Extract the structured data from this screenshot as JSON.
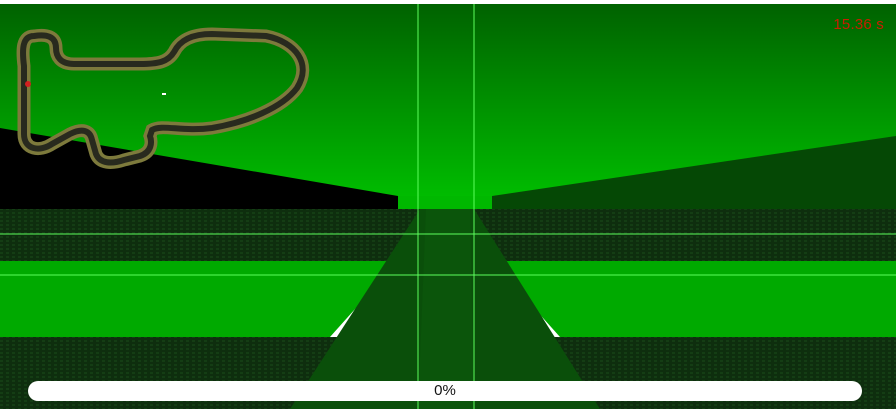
{
  "hud": {
    "timer": "15.36 s",
    "timer_color": "#c81e00"
  },
  "progress": {
    "label": "0%",
    "value": 0
  },
  "scene": {
    "sky_colors": [
      "#006400",
      "#00c800"
    ],
    "ground_color": "#0f2a0f",
    "track_color": "#0a5c0a",
    "grid_line_color": "#5cff5c"
  },
  "minimap": {
    "track_color": "#282a1e",
    "border_color": "#7d7a3c",
    "car_color": "#d22020"
  }
}
